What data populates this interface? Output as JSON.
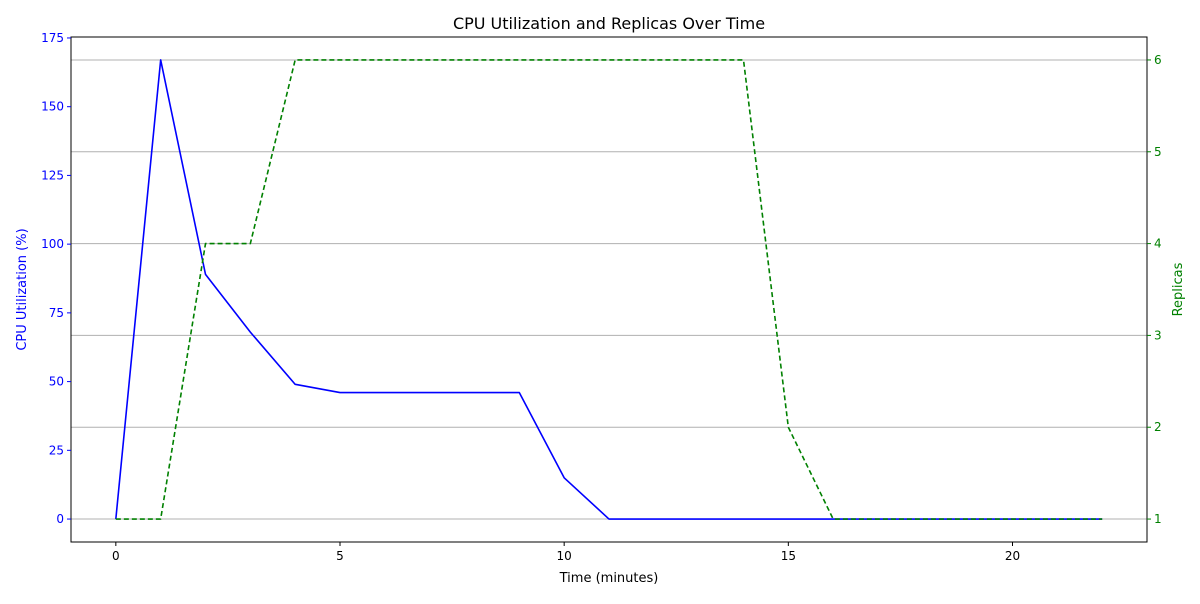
{
  "chart_data": {
    "type": "line",
    "title": "CPU Utilization and Replicas Over Time",
    "xlabel": "Time (minutes)",
    "ylabel_left": "CPU Utilization (%)",
    "ylabel_right": "Replicas",
    "xlim": [
      -1,
      23
    ],
    "ylim_left": [
      -8.35,
      175.35
    ],
    "ylim_right": [
      0.75,
      6.25
    ],
    "xticks": [
      0,
      5,
      10,
      15,
      20
    ],
    "yticks_left": [
      0,
      25,
      50,
      75,
      100,
      125,
      150,
      175
    ],
    "yticks_right": [
      1,
      2,
      3,
      4,
      5,
      6
    ],
    "grid": "horizontal lines at right-axis ticks",
    "colors": {
      "cpu": "#0000ff",
      "replicas": "#008000",
      "grid": "#b0b0b0",
      "axis": "#000000"
    },
    "x": [
      0,
      1,
      2,
      3,
      4,
      5,
      6,
      7,
      8,
      9,
      10,
      11,
      12,
      13,
      14,
      15,
      16,
      17,
      18,
      19,
      20,
      21,
      22
    ],
    "series": [
      {
        "key": "cpu",
        "axis": "left",
        "style": "solid",
        "values": [
          0,
          167,
          89,
          68,
          49,
          46,
          46,
          46,
          46,
          46,
          15,
          0,
          0,
          0,
          0,
          0,
          0,
          0,
          0,
          0,
          0,
          0,
          0
        ]
      },
      {
        "key": "replicas",
        "axis": "right",
        "style": "dashed",
        "values": [
          1,
          1,
          4,
          4,
          6,
          6,
          6,
          6,
          6,
          6,
          6,
          6,
          6,
          6,
          6,
          2,
          1,
          1,
          1,
          1,
          1,
          1,
          1
        ]
      }
    ]
  }
}
